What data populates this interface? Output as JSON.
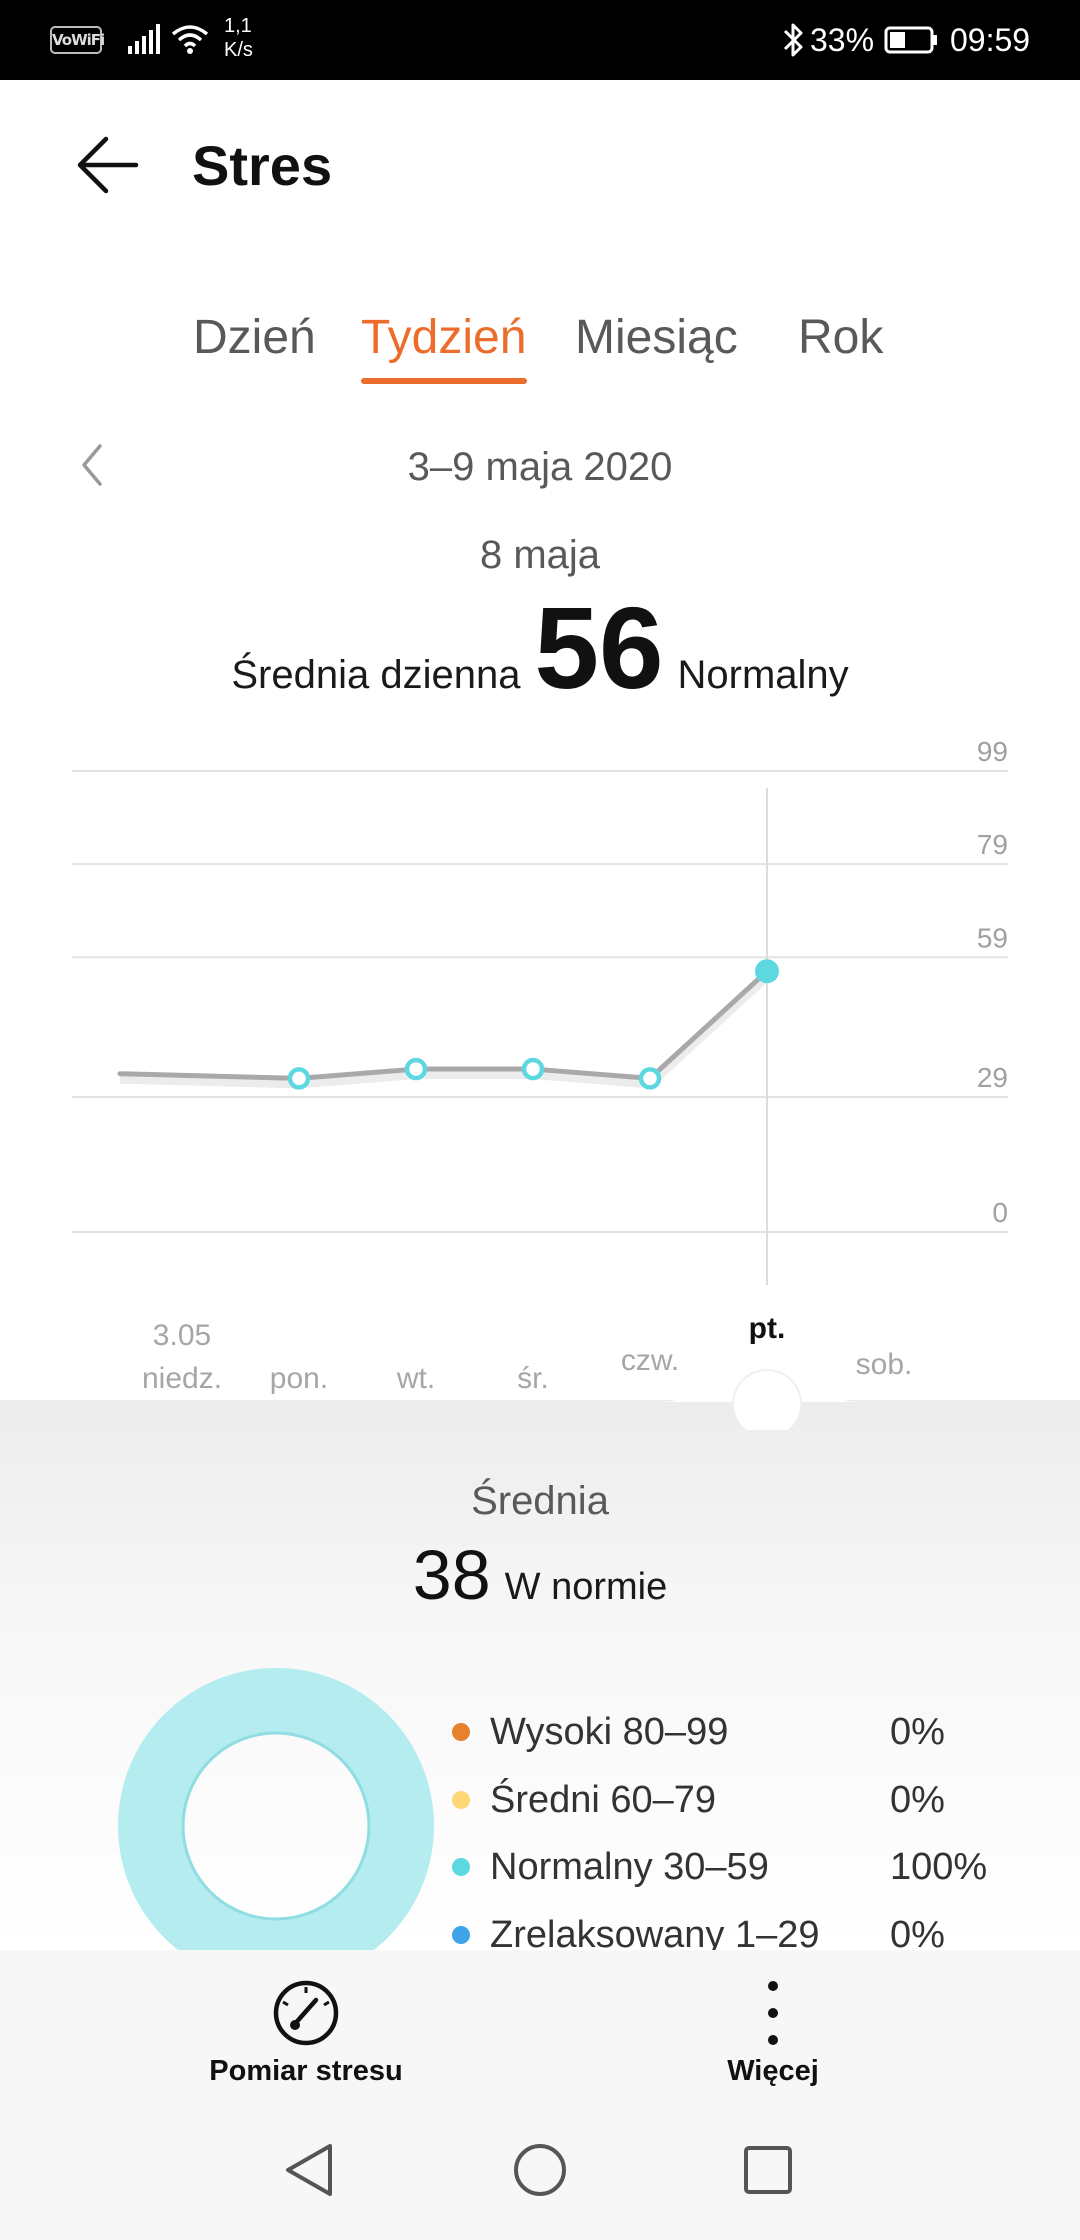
{
  "status_bar": {
    "vowifi": "VoWiFi",
    "speed_value": "1,1",
    "speed_unit": "K/s",
    "battery_percent": "33%",
    "time": "09:59",
    "icons": [
      "vowifi-icon",
      "signal-icon",
      "wifi-icon",
      "bluetooth-icon",
      "battery-icon"
    ]
  },
  "header": {
    "title": "Stres",
    "back_icon": "arrow-left-icon"
  },
  "tabs": [
    {
      "label": "Dzień",
      "active": false
    },
    {
      "label": "Tydzień",
      "active": true
    },
    {
      "label": "Miesiąc",
      "active": false
    },
    {
      "label": "Rok",
      "active": false
    }
  ],
  "date_nav": {
    "range": "3–9 maja 2020",
    "prev_icon": "chevron-left-icon"
  },
  "selection": {
    "date": "8 maja",
    "avg_label": "Średnia dzienna",
    "avg_value": "56",
    "status": "Normalny"
  },
  "colors": {
    "accent": "#ec6d2b",
    "line": "#a9a9a9",
    "point": "#5ed8e0",
    "donut_ring": "#b4ecef",
    "high": "#e8812b",
    "medium": "#fcd877",
    "normal": "#5ed8e0",
    "relaxed": "#3fa5e8"
  },
  "chart_data": {
    "type": "line",
    "y_ticks": [
      "99",
      "79",
      "59",
      "29",
      "0"
    ],
    "ylim": [
      0,
      99
    ],
    "categories": [
      {
        "date": "3.05",
        "day": "niedz."
      },
      {
        "date": "",
        "day": "pon."
      },
      {
        "date": "",
        "day": "wt."
      },
      {
        "date": "",
        "day": "śr."
      },
      {
        "date": "",
        "day": "czw."
      },
      {
        "date": "",
        "day": "pt."
      },
      {
        "date": "",
        "day": "sob."
      }
    ],
    "values": [
      null,
      33,
      35,
      35,
      33,
      56,
      null
    ],
    "leading_trend_value": 34,
    "selected_index": 5,
    "grid": true
  },
  "summary": {
    "title": "Średnia",
    "value": "38",
    "status": "W normie",
    "legend": [
      {
        "label": "Wysoki 80–99",
        "percent": "0%",
        "color": "#e8812b"
      },
      {
        "label": "Średni 60–79",
        "percent": "0%",
        "color": "#fcd877"
      },
      {
        "label": "Normalny 30–59",
        "percent": "100%",
        "color": "#5ed8e0"
      },
      {
        "label": "Zrelaksowany 1–29",
        "percent": "0%",
        "color": "#3fa5e8"
      }
    ]
  },
  "bottom_actions": {
    "measure_label": "Pomiar stresu",
    "measure_icon": "gauge-icon",
    "more_label": "Więcej",
    "more_icon": "more-vertical-icon"
  },
  "nav_bar": {
    "icons": [
      "back-triangle-icon",
      "home-circle-icon",
      "recents-square-icon"
    ]
  }
}
